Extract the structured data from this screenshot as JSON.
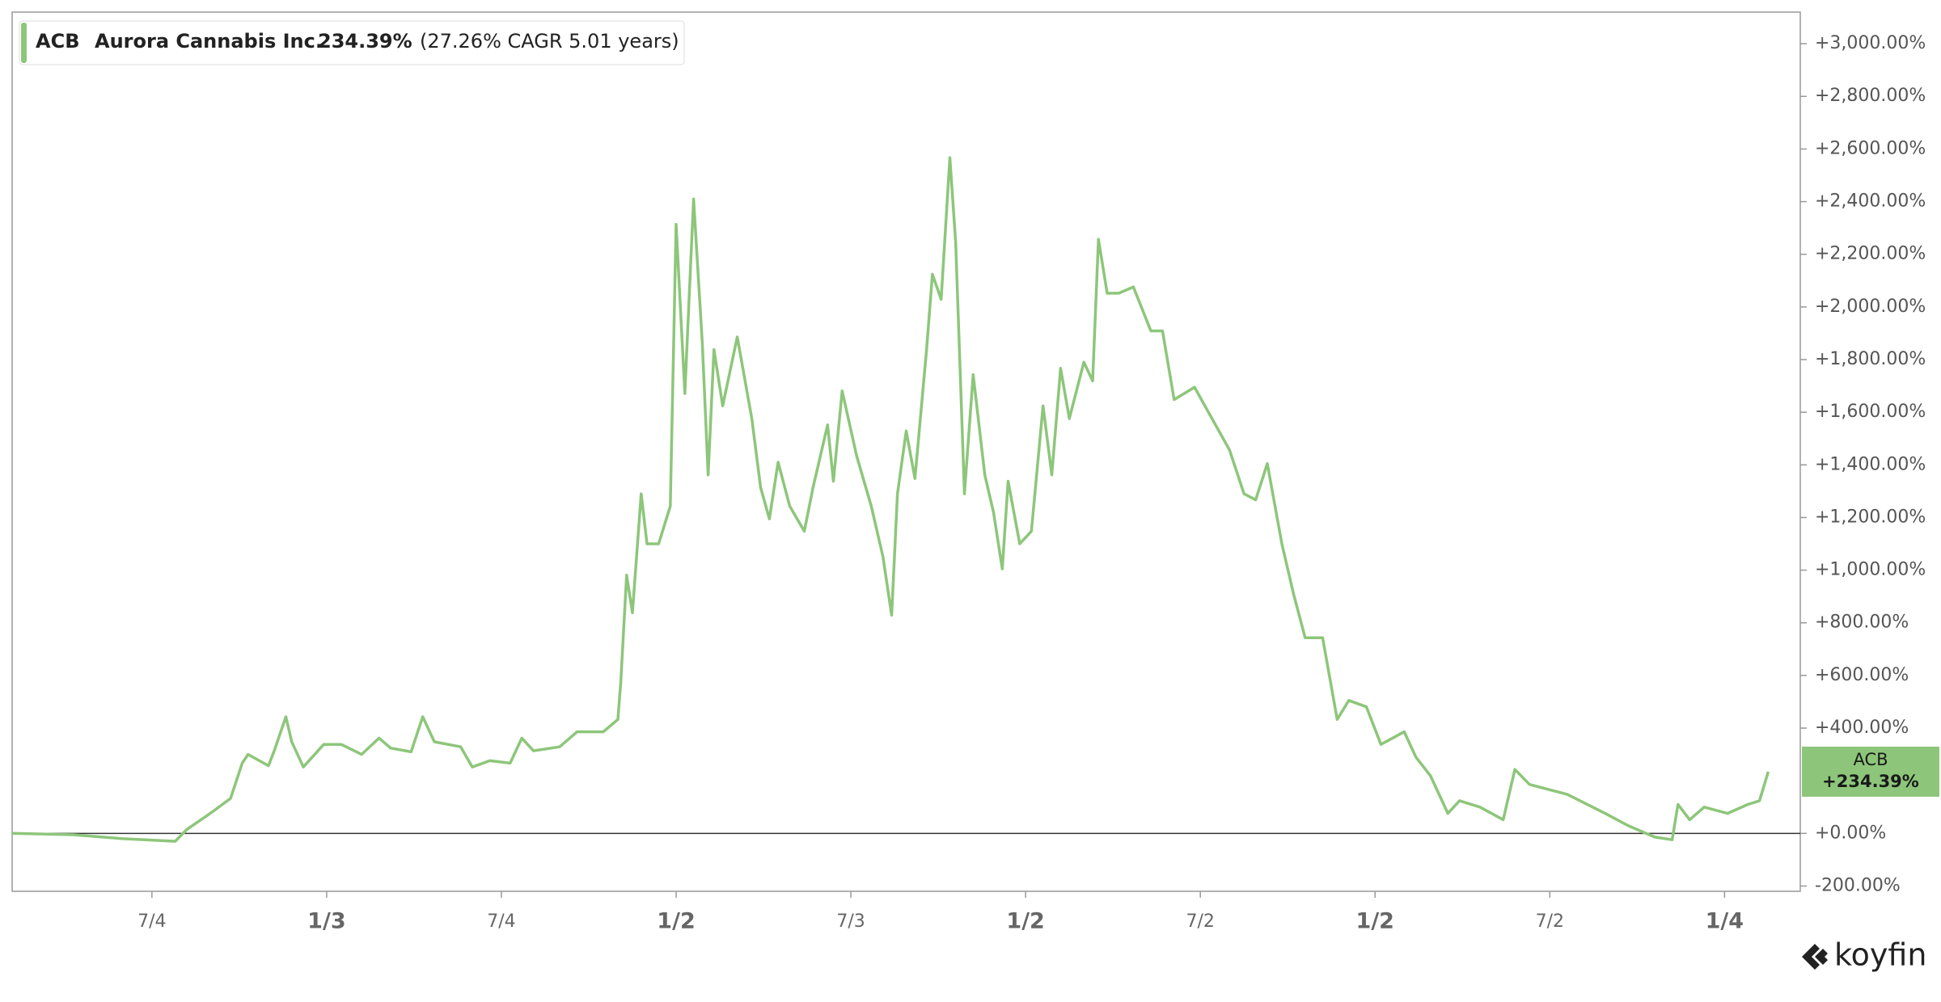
{
  "chart_data": {
    "type": "line",
    "legend": {
      "ticker": "ACB",
      "name": "Aurora Cannabis Inc.",
      "return": "234.39%",
      "cagr": "(27.26% CAGR 5.01 years)"
    },
    "end_label": {
      "ticker": "ACB",
      "value": "+234.39%"
    },
    "brand": "koyfin",
    "x": [
      0,
      2.1,
      3.8,
      5.6,
      6.0,
      6.8,
      7.5,
      7.9,
      8.1,
      8.8,
      9.0,
      9.4,
      9.6,
      10.0,
      10.7,
      11.3,
      12.0,
      12.6,
      13.0,
      13.7,
      14.1,
      14.5,
      15.4,
      15.8,
      16.4,
      17.1,
      17.5,
      17.9,
      18.8,
      19.4,
      20.3,
      20.8,
      20.9,
      21.1,
      21.3,
      21.6,
      21.8,
      22.2,
      22.6,
      22.8,
      23.1,
      23.4,
      23.7,
      23.9,
      24.1,
      24.4,
      24.9,
      25.4,
      25.7,
      26.0,
      26.3,
      26.7,
      27.2,
      27.5,
      28.0,
      28.2,
      28.5,
      29.0,
      29.5,
      29.9,
      30.2,
      30.4,
      30.7,
      31.0,
      31.4,
      31.6,
      31.9,
      32.2,
      32.4,
      32.7,
      33.0,
      33.4,
      33.7,
      34.0,
      34.2,
      34.6,
      35.0,
      35.4,
      35.7,
      36.0,
      36.3,
      36.8,
      37.1,
      37.3,
      37.6,
      38.0,
      38.5,
      39.1,
      39.5,
      39.9,
      40.6,
      41.2,
      41.8,
      42.3,
      42.7,
      43.1,
      43.6,
      44.0,
      44.4,
      45.0,
      45.5,
      45.9,
      46.5,
      47.0,
      47.4,
      47.8,
      48.2,
      48.7,
      49.3,
      49.7,
      50.4,
      51.2,
      51.6,
      52.1,
      53.4,
      54.7,
      55.5,
      56.4,
      57.0,
      57.2,
      57.6,
      58.1,
      58.9,
      59.6,
      60.0,
      60.3
    ],
    "series": [
      {
        "name": "ACB",
        "color": "#8dc67a",
        "values": [
          0,
          -5,
          -20,
          -30,
          15,
          76,
          133,
          267,
          300,
          257,
          314,
          443,
          348,
          252,
          338,
          338,
          300,
          362,
          324,
          310,
          443,
          348,
          329,
          252,
          276,
          267,
          362,
          314,
          329,
          386,
          386,
          433,
          576,
          981,
          838,
          1290,
          1100,
          1100,
          1243,
          2314,
          1671,
          2410,
          1862,
          1362,
          1838,
          1624,
          1886,
          1576,
          1314,
          1195,
          1410,
          1243,
          1148,
          1314,
          1552,
          1338,
          1681,
          1433,
          1243,
          1052,
          829,
          1290,
          1529,
          1348,
          1838,
          2124,
          2029,
          2567,
          2243,
          1290,
          1743,
          1362,
          1219,
          1005,
          1338,
          1100,
          1148,
          1624,
          1362,
          1767,
          1576,
          1790,
          1719,
          2257,
          2052,
          2052,
          2076,
          1909,
          1909,
          1648,
          1695,
          1576,
          1457,
          1290,
          1267,
          1405,
          1100,
          910,
          743,
          743,
          433,
          505,
          481,
          338,
          362,
          386,
          290,
          219,
          76,
          124,
          100,
          52,
          243,
          186,
          148,
          76,
          29,
          -14,
          -24,
          110,
          52,
          100,
          76,
          110,
          124,
          234.39
        ]
      }
    ],
    "xlim": [
      0,
      61.4
    ],
    "xticks": [
      {
        "value": 4.8,
        "label": "7/4"
      },
      {
        "value": 10.8,
        "label": "1/3"
      },
      {
        "value": 16.8,
        "label": "7/4"
      },
      {
        "value": 22.8,
        "label": "1/2"
      },
      {
        "value": 28.8,
        "label": "7/3"
      },
      {
        "value": 34.8,
        "label": "1/2"
      },
      {
        "value": 40.8,
        "label": "7/2"
      },
      {
        "value": 46.8,
        "label": "1/2"
      },
      {
        "value": 52.8,
        "label": "7/2"
      },
      {
        "value": 58.8,
        "label": "1/4"
      }
    ],
    "ylim": [
      -220,
      3120
    ],
    "yticks": [
      {
        "value": -200,
        "label": "-200.00%"
      },
      {
        "value": 0,
        "label": "+0.00%"
      },
      {
        "value": 400,
        "label": "+400.00%"
      },
      {
        "value": 600,
        "label": "+600.00%"
      },
      {
        "value": 800,
        "label": "+800.00%"
      },
      {
        "value": 1000,
        "label": "+1,000.00%"
      },
      {
        "value": 1200,
        "label": "+1,200.00%"
      },
      {
        "value": 1400,
        "label": "+1,400.00%"
      },
      {
        "value": 1600,
        "label": "+1,600.00%"
      },
      {
        "value": 1800,
        "label": "+1,800.00%"
      },
      {
        "value": 2000,
        "label": "+2,000.00%"
      },
      {
        "value": 2200,
        "label": "+2,200.00%"
      },
      {
        "value": 2400,
        "label": "+2,400.00%"
      },
      {
        "value": 2600,
        "label": "+2,600.00%"
      },
      {
        "value": 2800,
        "label": "+2,800.00%"
      },
      {
        "value": 3000,
        "label": "+3,000.00%"
      }
    ],
    "zero_line": true
  }
}
